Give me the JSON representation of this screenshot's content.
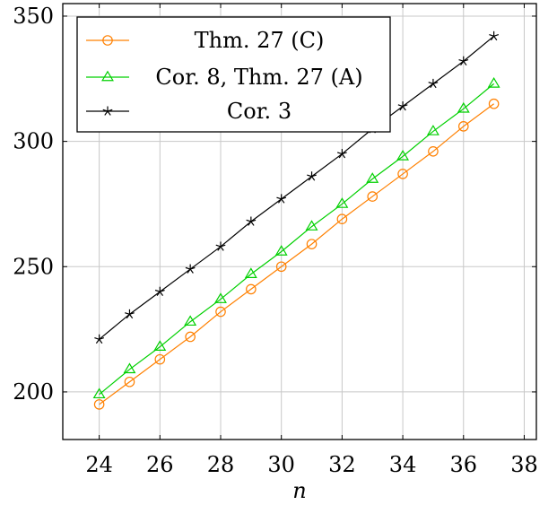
{
  "chart_data": {
    "type": "line",
    "title": "",
    "xlabel": "n",
    "ylabel": "",
    "xlim": [
      22.8,
      38.4
    ],
    "ylim": [
      181,
      355
    ],
    "grid": true,
    "legend_position": "top-left",
    "x": [
      24,
      25,
      26,
      27,
      28,
      29,
      30,
      31,
      32,
      33,
      34,
      35,
      36,
      37
    ],
    "xticks": [
      "24",
      "26",
      "28",
      "30",
      "32",
      "34",
      "36",
      "38"
    ],
    "yticks": [
      "200",
      "250",
      "300",
      "350"
    ],
    "series": [
      {
        "name": "Thm. 27 (C)",
        "color": "#ff8000",
        "marker": "circle",
        "values": [
          195,
          204,
          213,
          222,
          232,
          241,
          250,
          259,
          269,
          278,
          287,
          296,
          306,
          315
        ]
      },
      {
        "name": "Cor. 8, Thm. 27 (A)",
        "color": "#00d000",
        "marker": "triangle",
        "values": [
          199,
          209,
          218,
          228,
          237,
          247,
          256,
          266,
          275,
          285,
          294,
          304,
          313,
          323
        ]
      },
      {
        "name": "Cor. 3",
        "color": "#000000",
        "marker": "star",
        "values": [
          221,
          231,
          240,
          249,
          258,
          268,
          277,
          286,
          295,
          305,
          314,
          323,
          332,
          342
        ]
      }
    ]
  }
}
